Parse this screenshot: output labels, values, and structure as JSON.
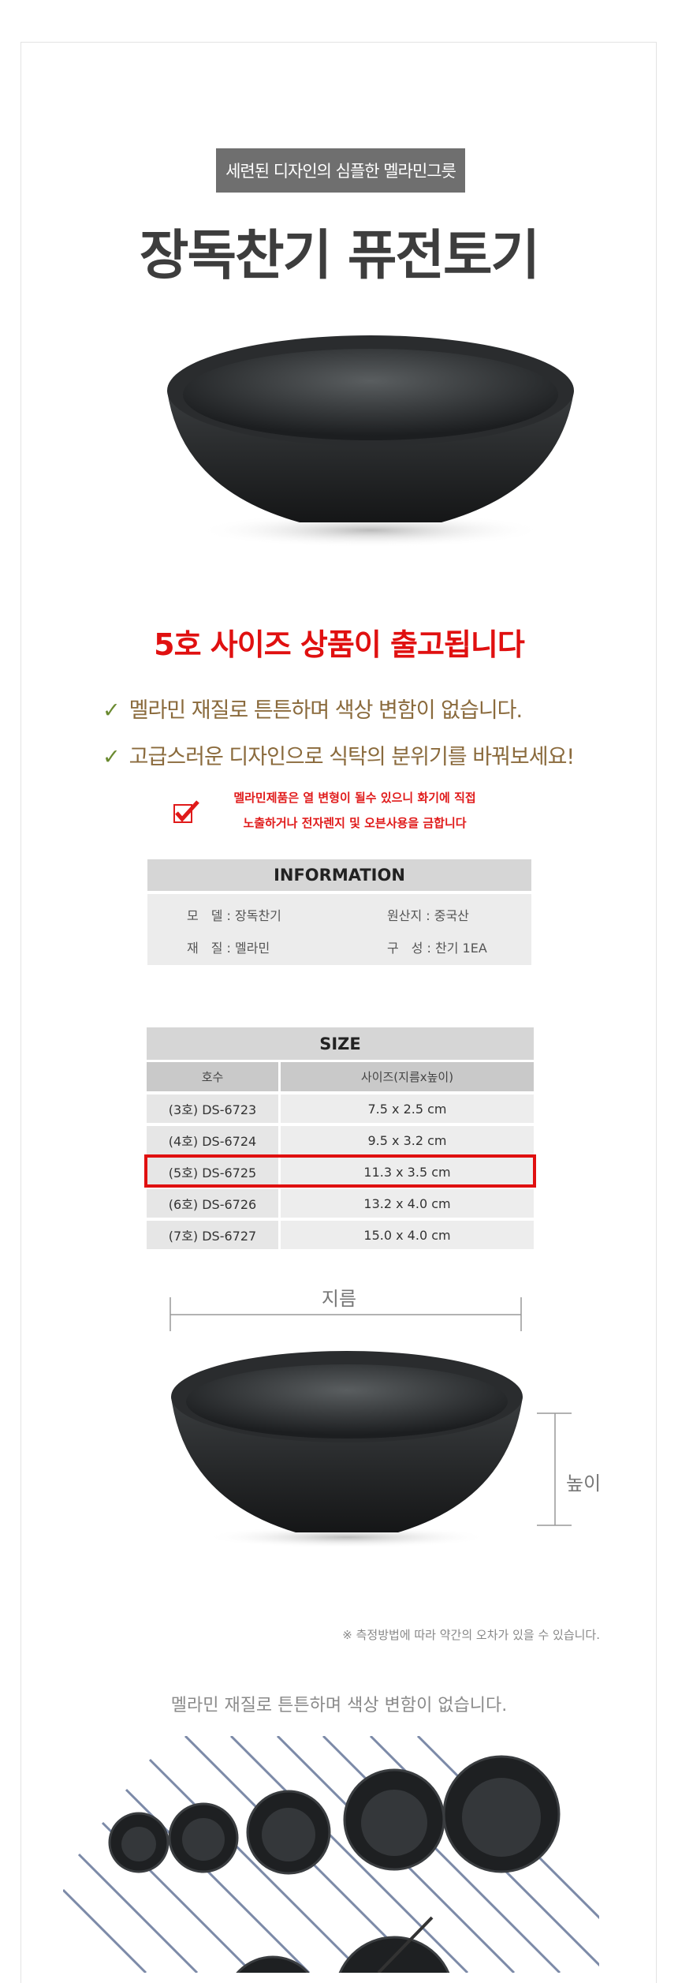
{
  "header": {
    "subtitle": "세련된 디자인의 심플한 멜라민그릇",
    "title": "장독찬기 퓨전토기"
  },
  "notice": "5호 사이즈 상품이 출고됩니다",
  "features": [
    "멜라민 재질로 튼튼하며 색상 변함이 없습니다.",
    "고급스러운 디자인으로 식탁의 분위기를 바꿔보세요!"
  ],
  "check_icon": "✓",
  "warning": {
    "icon": "red-checkbox-icon",
    "lines": [
      "멜라민제품은 열 변형이 될수 있으니 화기에 직접",
      "노출하거나 전자렌지 및 오븐사용을 금합니다"
    ]
  },
  "information": {
    "title": "INFORMATION",
    "items": [
      {
        "label": "모　델 : 장독찬기"
      },
      {
        "label": "원산지 : 중국산"
      },
      {
        "label": "재　질 : 멜라민"
      },
      {
        "label": "구　성 : 찬기 1EA"
      }
    ]
  },
  "size_table": {
    "title": "SIZE",
    "columns": [
      "호수",
      "사이즈(지름x높이)"
    ],
    "rows": [
      {
        "model": "(3호)  DS-6723",
        "size": "7.5 x 2.5 cm"
      },
      {
        "model": "(4호)  DS-6724",
        "size": "9.5 x 3.2 cm"
      },
      {
        "model": "(5호)  DS-6725",
        "size": "11.3 x 3.5 cm",
        "highlighted": true
      },
      {
        "model": "(6호)  DS-6726",
        "size": "13.2 x 4.0 cm"
      },
      {
        "model": "(7호)  DS-6727",
        "size": "15.0 x 4.0 cm"
      }
    ],
    "highlight_color": "#e01010"
  },
  "diagram": {
    "diameter_label": "지름",
    "height_label": "높이"
  },
  "measure_note": "※ 측정방법에 따라 약간의 오차가 있을 수 있습니다.",
  "bottom_caption": "멜라민 재질로 튼튼하며 색상 변함이 없습니다."
}
